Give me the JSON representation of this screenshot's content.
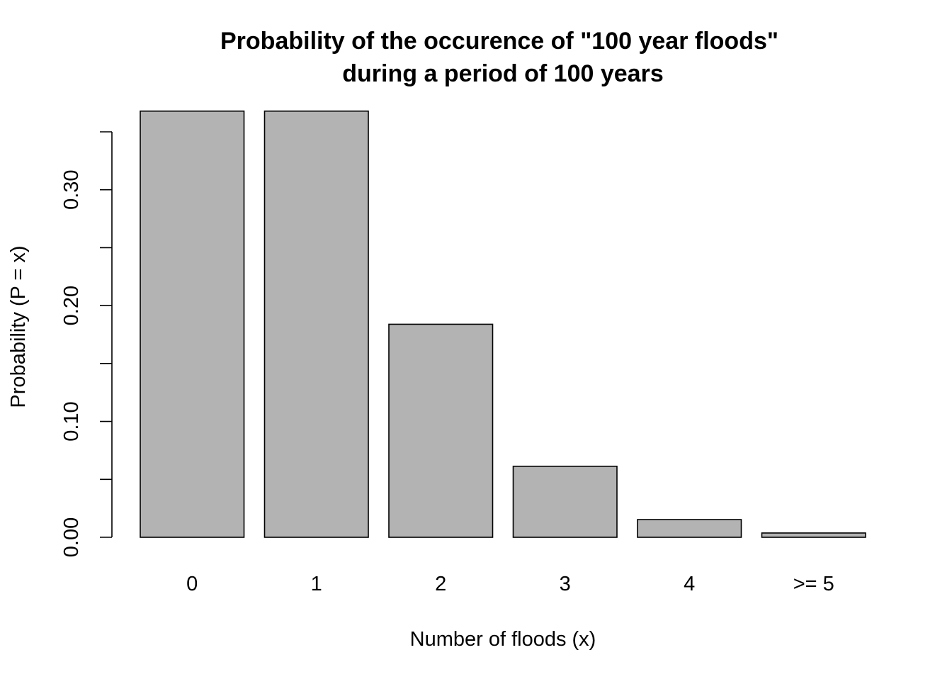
{
  "chart_data": {
    "type": "bar",
    "title": "Probability of the occurence of \"100 year floods\"",
    "subtitle": "during a period of 100 years",
    "xlabel": "Number of floods (x)",
    "ylabel": "Probability  (P = x)",
    "categories": [
      "0",
      "1",
      "2",
      "3",
      "4",
      ">= 5"
    ],
    "values": [
      0.3679,
      0.3679,
      0.1839,
      0.0613,
      0.0153,
      0.0037
    ],
    "ylim": [
      0,
      0.35
    ],
    "yticks": [
      0.0,
      0.05,
      0.1,
      0.15,
      0.2,
      0.25,
      0.3,
      0.35
    ],
    "ytick_labels": [
      "0.00",
      "",
      "0.10",
      "",
      "0.20",
      "",
      "0.30",
      ""
    ],
    "grid": false,
    "legend": "none",
    "colors": {
      "bar_fill": "#b3b3b3",
      "bar_stroke": "#000000",
      "axis": "#000000",
      "background": "#ffffff"
    }
  }
}
